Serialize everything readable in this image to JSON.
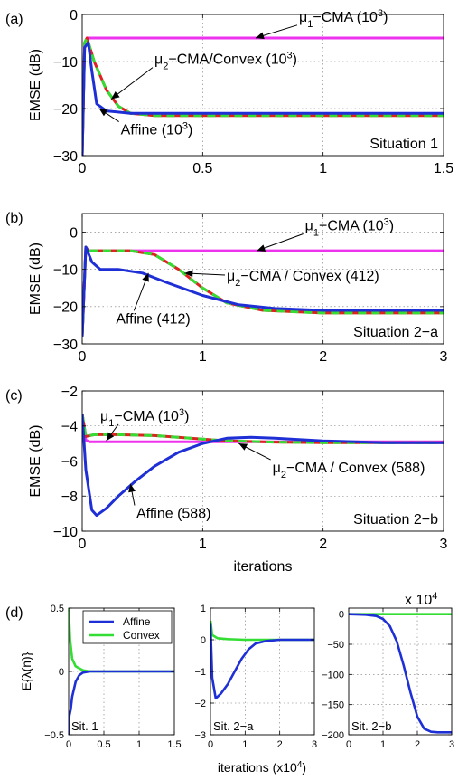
{
  "colors": {
    "affine": "#1f2fd6",
    "convex": "#33dd33",
    "mu1": "#ee33ee",
    "mu2": "#dd2222"
  },
  "chart_data": [
    {
      "id": "a",
      "type": "line",
      "panel_label": "(a)",
      "ylabel": "EMSE (dB)",
      "xlim": [
        0,
        1.5
      ],
      "ylim": [
        -30,
        0
      ],
      "xticks": [
        0,
        0.5,
        1,
        1.5
      ],
      "xtick_labels": [
        "0",
        "0.5",
        "1",
        "1.5"
      ],
      "yticks": [
        -30,
        -20,
        -10,
        0
      ],
      "ytick_labels": [
        "−30",
        "−20",
        "−10",
        "0"
      ],
      "grid": true,
      "situation": "Situation 1",
      "series": [
        {
          "key": "mu1",
          "color_key": "mu1",
          "dash": false,
          "x": [
            0,
            0.01,
            0.02,
            0.05,
            1.5
          ],
          "y": [
            -30,
            -6,
            -5,
            -5,
            -5
          ]
        },
        {
          "key": "mu2",
          "color_key": "mu2",
          "dash": false,
          "x": [
            0,
            0.01,
            0.02,
            0.05,
            0.1,
            0.15,
            0.2,
            0.3,
            0.5,
            1.0,
            1.5
          ],
          "y": [
            -30,
            -6,
            -5,
            -10,
            -16,
            -19.5,
            -21,
            -21.5,
            -21.5,
            -21.5,
            -21.5
          ]
        },
        {
          "key": "convex",
          "color_key": "convex",
          "dash": true,
          "x": [
            0,
            0.01,
            0.02,
            0.05,
            0.1,
            0.15,
            0.2,
            0.3,
            0.5,
            1.0,
            1.5
          ],
          "y": [
            -30,
            -6,
            -5,
            -10,
            -16,
            -19.5,
            -21,
            -21.5,
            -21.5,
            -21.5,
            -21.5
          ]
        },
        {
          "key": "affine",
          "color_key": "affine",
          "dash": false,
          "x": [
            0,
            0.01,
            0.025,
            0.04,
            0.06,
            0.1,
            0.2,
            1.5
          ],
          "y": [
            -30,
            -7,
            -6,
            -12,
            -19,
            -20.5,
            -21,
            -21
          ]
        }
      ],
      "annotations": [
        {
          "key": "mu1",
          "prefix": "μ",
          "sub": "1",
          "rest": "−CMA (10",
          "sup": "3",
          "end": ")",
          "pos": [
            0.9,
            -1.5
          ],
          "arrow_to": [
            0.72,
            -5
          ]
        },
        {
          "key": "mu2",
          "prefix": "μ",
          "sub": "2",
          "rest": "−CMA/Convex (10",
          "sup": "3",
          "end": ")",
          "pos": [
            0.3,
            -10.5
          ],
          "arrow_to": [
            0.12,
            -18
          ]
        },
        {
          "key": "affine",
          "prefix": "",
          "sub": "",
          "rest": "Affine (10",
          "sup": "3",
          "end": ")",
          "pos": [
            0.16,
            -25.5
          ],
          "arrow_to": [
            0.07,
            -20
          ]
        }
      ]
    },
    {
      "id": "b",
      "type": "line",
      "panel_label": "(b)",
      "ylabel": "EMSE (dB)",
      "xlim": [
        0,
        3
      ],
      "ylim": [
        -30,
        5
      ],
      "xticks": [
        0,
        1,
        2,
        3
      ],
      "xtick_labels": [
        "0",
        "1",
        "2",
        "3"
      ],
      "yticks": [
        -30,
        -20,
        -10,
        0
      ],
      "ytick_labels": [
        "−30",
        "−20",
        "−10",
        "0"
      ],
      "grid": true,
      "situation": "Situation 2−a",
      "series": [
        {
          "key": "mu1",
          "color_key": "mu1",
          "dash": false,
          "x": [
            0,
            0.03,
            0.05,
            3
          ],
          "y": [
            -28,
            -4,
            -5,
            -5
          ]
        },
        {
          "key": "mu2",
          "color_key": "mu2",
          "dash": false,
          "x": [
            0,
            0.03,
            0.05,
            0.4,
            0.6,
            0.8,
            1.0,
            1.2,
            1.5,
            2.0,
            3.0
          ],
          "y": [
            -28,
            -4,
            -5,
            -5,
            -6,
            -10,
            -15,
            -19,
            -21,
            -21.7,
            -21.7
          ]
        },
        {
          "key": "convex",
          "color_key": "convex",
          "dash": true,
          "x": [
            0,
            0.03,
            0.05,
            0.4,
            0.6,
            0.8,
            1.0,
            1.2,
            1.5,
            2.0,
            3.0
          ],
          "y": [
            -28,
            -4,
            -5,
            -5,
            -6,
            -10,
            -15,
            -19,
            -21,
            -21.7,
            -21.7
          ]
        },
        {
          "key": "affine",
          "color_key": "affine",
          "dash": false,
          "x": [
            0,
            0.03,
            0.08,
            0.15,
            0.3,
            0.5,
            0.7,
            1.0,
            1.3,
            1.6,
            2.0,
            3.0
          ],
          "y": [
            -28,
            -4,
            -8,
            -10,
            -10,
            -11,
            -13.5,
            -17,
            -19.5,
            -20.5,
            -21,
            -21
          ]
        }
      ],
      "annotations": [
        {
          "key": "mu1",
          "prefix": "μ",
          "sub": "1",
          "rest": "−CMA (10",
          "sup": "3",
          "end": ")",
          "pos": [
            1.85,
            0.5
          ],
          "arrow_to": [
            1.45,
            -5
          ]
        },
        {
          "key": "mu2",
          "prefix": "μ",
          "sub": "2",
          "rest": "−CMA / Convex (412)",
          "sup": "",
          "end": "",
          "pos": [
            1.2,
            -13
          ],
          "arrow_to": [
            0.85,
            -11
          ]
        },
        {
          "key": "affine",
          "prefix": "",
          "sub": "",
          "rest": "Affine (412)",
          "sup": "",
          "end": "",
          "pos": [
            0.28,
            -24.5
          ],
          "arrow_to": [
            0.55,
            -11
          ]
        }
      ]
    },
    {
      "id": "c",
      "type": "line",
      "panel_label": "(c)",
      "ylabel": "EMSE (dB)",
      "xlim": [
        0,
        3
      ],
      "ylim": [
        -10,
        -2
      ],
      "xticks": [
        0,
        1,
        2,
        3
      ],
      "xtick_labels": [
        "0",
        "1",
        "2",
        "3"
      ],
      "yticks": [
        -10,
        -8,
        -6,
        -4,
        -2
      ],
      "ytick_labels": [
        "−10",
        "−8",
        "−6",
        "−4",
        "−2"
      ],
      "grid": true,
      "situation": "Situation 2−b",
      "xlabel": "iterations",
      "x_multiplier_base": "x 10",
      "x_multiplier_exp": "4",
      "series": [
        {
          "key": "mu1",
          "color_key": "mu1",
          "dash": false,
          "x": [
            0,
            0.03,
            0.06,
            3
          ],
          "y": [
            -3.3,
            -4.8,
            -4.9,
            -4.9
          ]
        },
        {
          "key": "mu2",
          "color_key": "mu2",
          "dash": false,
          "x": [
            0,
            0.03,
            0.1,
            0.3,
            0.6,
            0.9,
            1.2,
            1.6,
            2.0,
            3.0
          ],
          "y": [
            -3.3,
            -4.6,
            -4.5,
            -4.5,
            -4.55,
            -4.7,
            -4.85,
            -4.92,
            -4.95,
            -4.95
          ]
        },
        {
          "key": "convex",
          "color_key": "convex",
          "dash": true,
          "x": [
            0,
            0.03,
            0.1,
            0.3,
            0.6,
            0.9,
            1.2,
            1.6,
            2.0,
            3.0
          ],
          "y": [
            -3.3,
            -4.6,
            -4.5,
            -4.5,
            -4.55,
            -4.7,
            -4.85,
            -4.92,
            -4.95,
            -4.95
          ]
        },
        {
          "key": "affine",
          "color_key": "affine",
          "dash": false,
          "x": [
            0,
            0.03,
            0.08,
            0.12,
            0.2,
            0.3,
            0.45,
            0.6,
            0.8,
            1.0,
            1.2,
            1.4,
            1.6,
            2.0,
            2.5,
            3.0
          ],
          "y": [
            -3.3,
            -6.5,
            -8.8,
            -9.1,
            -8.7,
            -8.0,
            -7.1,
            -6.3,
            -5.5,
            -5.0,
            -4.7,
            -4.65,
            -4.7,
            -4.85,
            -4.95,
            -4.95
          ]
        }
      ],
      "annotations": [
        {
          "key": "mu1",
          "prefix": "μ",
          "sub": "1",
          "rest": "−CMA (10",
          "sup": "3",
          "end": ")",
          "pos": [
            0.15,
            -3.7
          ],
          "arrow_to": [
            0.2,
            -4.85
          ]
        },
        {
          "key": "mu2",
          "prefix": "μ",
          "sub": "2",
          "rest": "−CMA / Convex (588)",
          "sup": "",
          "end": "",
          "pos": [
            1.58,
            -6.65
          ],
          "arrow_to": [
            1.3,
            -5.0
          ]
        },
        {
          "key": "affine",
          "prefix": "",
          "sub": "",
          "rest": "Affine (588)",
          "sup": "",
          "end": "",
          "pos": [
            0.45,
            -9.25
          ],
          "arrow_to": [
            0.4,
            -7.3
          ]
        }
      ]
    },
    {
      "id": "d1",
      "type": "line",
      "panel_label": "(d)",
      "ylabel": "E{λ(n)}",
      "xlim": [
        0,
        1.5
      ],
      "ylim": [
        -0.5,
        0.5
      ],
      "xticks": [
        0,
        0.5,
        1,
        1.5
      ],
      "xtick_labels": [
        "0",
        "0.5",
        "1",
        "1.5"
      ],
      "yticks": [
        -0.5,
        0,
        0.5
      ],
      "ytick_labels": [
        "−0.5",
        "0",
        "0.5"
      ],
      "grid": true,
      "situation": "Sit. 1",
      "legend": {
        "placement": "top-right",
        "entries": [
          {
            "name": "Affine",
            "color_key": "affine"
          },
          {
            "name": "Convex",
            "color_key": "convex"
          }
        ]
      },
      "series": [
        {
          "key": "convex",
          "color_key": "convex",
          "dash": false,
          "x": [
            0,
            0.02,
            0.05,
            0.1,
            0.2,
            0.3,
            1.5
          ],
          "y": [
            0.5,
            0.25,
            0.1,
            0.04,
            0.01,
            0,
            0
          ]
        },
        {
          "key": "affine",
          "color_key": "affine",
          "dash": false,
          "x": [
            0,
            0.01,
            0.03,
            0.05,
            0.1,
            0.15,
            0.2,
            0.3,
            1.5
          ],
          "y": [
            -0.5,
            -0.35,
            -0.3,
            -0.2,
            -0.08,
            -0.03,
            -0.01,
            0,
            0
          ]
        }
      ]
    },
    {
      "id": "d2",
      "type": "line",
      "xlim": [
        0,
        3
      ],
      "ylim": [
        -3,
        1
      ],
      "xticks": [
        0,
        1,
        2,
        3
      ],
      "xtick_labels": [
        "0",
        "1",
        "2",
        "3"
      ],
      "yticks": [
        -3,
        -2,
        -1,
        0,
        1
      ],
      "ytick_labels": [
        "−3",
        "−2",
        "−1",
        "0",
        "1"
      ],
      "grid": true,
      "situation": "Sit. 2−a",
      "series": [
        {
          "key": "convex",
          "color_key": "convex",
          "dash": false,
          "x": [
            0,
            0.05,
            0.2,
            0.5,
            1.0,
            3.0
          ],
          "y": [
            0.6,
            0.15,
            0.05,
            0.02,
            0,
            0
          ]
        },
        {
          "key": "affine",
          "color_key": "affine",
          "dash": false,
          "x": [
            0,
            0.05,
            0.15,
            0.3,
            0.5,
            0.7,
            0.9,
            1.1,
            1.3,
            1.6,
            2.0,
            3.0
          ],
          "y": [
            0.5,
            -1.2,
            -1.85,
            -1.7,
            -1.4,
            -1.0,
            -0.6,
            -0.3,
            -0.12,
            -0.04,
            0,
            0
          ]
        }
      ]
    },
    {
      "id": "d3",
      "type": "line",
      "xlim": [
        0,
        3
      ],
      "ylim": [
        -200,
        10
      ],
      "xticks": [
        0,
        1,
        2,
        3
      ],
      "xtick_labels": [
        "0",
        "1",
        "2",
        "3"
      ],
      "yticks": [
        -200,
        -150,
        -100,
        -50,
        0
      ],
      "ytick_labels": [
        "−200",
        "−150",
        "−100",
        "−50",
        "0"
      ],
      "grid": true,
      "situation": "Sit. 2−b",
      "xlabel": "iterations (x10",
      "xlabel_sup": "4",
      "xlabel_end": ")",
      "series": [
        {
          "key": "convex",
          "color_key": "convex",
          "dash": false,
          "x": [
            0,
            3
          ],
          "y": [
            0,
            0
          ]
        },
        {
          "key": "affine",
          "color_key": "affine",
          "dash": false,
          "x": [
            0,
            0.5,
            0.8,
            1.0,
            1.2,
            1.4,
            1.6,
            1.8,
            2.0,
            2.2,
            2.4,
            2.6,
            3.0
          ],
          "y": [
            0,
            -1,
            -3,
            -8,
            -20,
            -45,
            -85,
            -130,
            -170,
            -190,
            -195,
            -196,
            -196
          ]
        }
      ]
    }
  ]
}
